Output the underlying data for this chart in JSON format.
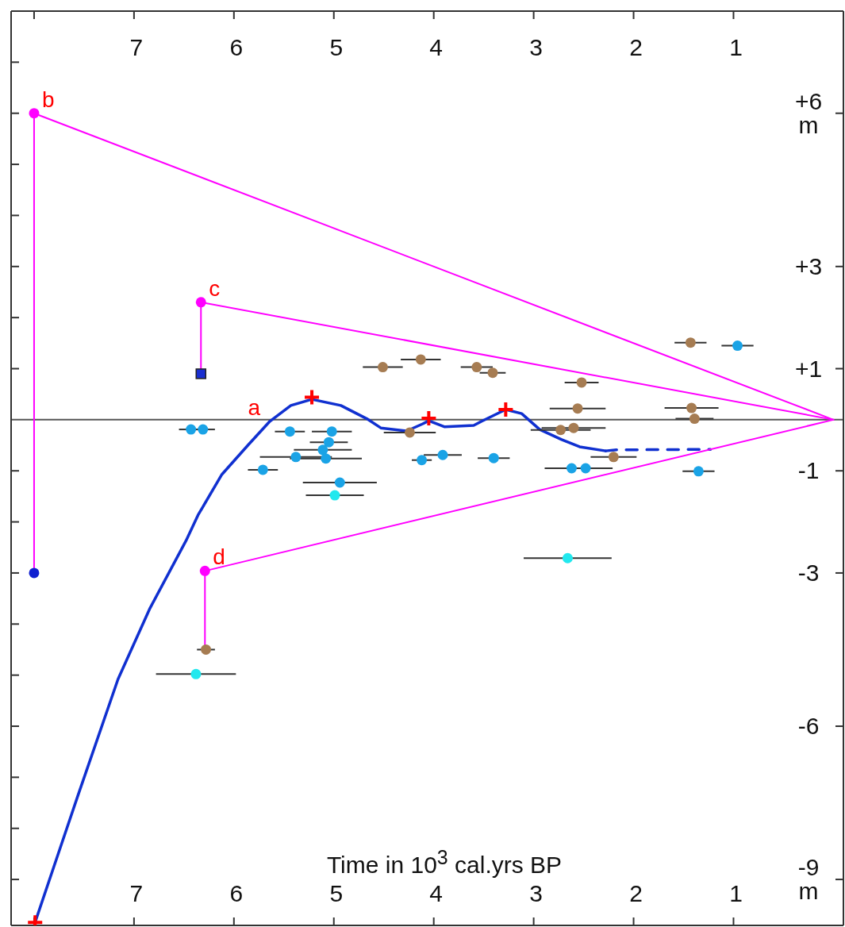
{
  "chart_data": {
    "type": "scatter",
    "xlabel": "Time in 10$^{3}$ cal.yrs BP",
    "xlim": [
      8.23,
      -0.1
    ],
    "xticks": [
      {
        "value": 8,
        "label": null
      },
      7,
      6,
      5,
      4,
      3,
      2,
      1
    ],
    "x2lim": [
      8.23,
      -0.1
    ],
    "x2ticks": [
      {
        "value": 8,
        "label": null
      },
      7,
      6,
      5,
      4,
      3,
      2,
      1
    ],
    "ylim": [
      -9.9,
      8
    ],
    "yticks": [
      {
        "value": -9,
        "label": "-9 m"
      },
      {
        "value": -8,
        "label": null
      },
      {
        "value": -7,
        "label": null
      },
      {
        "value": -6,
        "label": "-6"
      },
      {
        "value": -5,
        "label": null
      },
      {
        "value": -4,
        "label": null
      },
      {
        "value": -3,
        "label": "-3"
      },
      {
        "value": -2,
        "label": null
      },
      {
        "value": -1,
        "label": "-1"
      },
      {
        "value": 1,
        "label": "+1"
      },
      {
        "value": 2,
        "label": null
      },
      {
        "value": 3,
        "label": "+3"
      },
      {
        "value": 4,
        "label": null
      },
      {
        "value": 5,
        "label": null
      },
      {
        "value": 6,
        "label": "+6 m"
      },
      {
        "value": 7,
        "label": null
      }
    ],
    "grid": false,
    "ref_lines": [
      {
        "axis": "y",
        "value": 0,
        "label": null,
        "color": "#555555"
      }
    ],
    "annotations": [
      {
        "text": "a",
        "x": 5.64,
        "y": -0.03
      },
      {
        "text": "b",
        "x": 8,
        "y": 6
      },
      {
        "text": "c",
        "x": 6.33,
        "y": 2.3
      },
      {
        "text": "d",
        "x": 6.29,
        "y": -2.96
      }
    ],
    "series": [
      {
        "type": "line",
        "color": "#1030d0",
        "line_style": "solid",
        "x": [
          7.99,
          7.79,
          7.56,
          7.16,
          6.84,
          6.48,
          6.36,
          6.12,
          5.86,
          5.64,
          5.43,
          5.22,
          4.93,
          4.67,
          4.53,
          4.27,
          4.11,
          4.05,
          3.89,
          3.6,
          3.52,
          3.28,
          3.12,
          2.94,
          2.72,
          2.54,
          2.28
        ],
        "values": [
          -9.84,
          -8.68,
          -7.35,
          -5.08,
          -3.69,
          -2.37,
          -1.87,
          -1.07,
          -0.5,
          -0.03,
          0.28,
          0.4,
          0.28,
          0.02,
          -0.16,
          -0.22,
          -0.08,
          -0.02,
          -0.14,
          -0.11,
          -0.03,
          0.2,
          0.12,
          -0.19,
          -0.39,
          -0.53,
          -0.61
        ]
      },
      {
        "type": "line",
        "color": "#1030d0",
        "line_style": "dashed",
        "x": [
          2.28,
          2.17,
          1.23
        ],
        "values": [
          -0.61,
          -0.59,
          -0.58
        ]
      },
      {
        "type": "line",
        "color": "#ff00ff",
        "line_style": "solid",
        "x": [
          8,
          0
        ],
        "values": [
          6,
          0
        ]
      },
      {
        "type": "line",
        "color": "#ff00ff",
        "line_style": "solid",
        "x": [
          6.33,
          0
        ],
        "values": [
          2.3,
          0
        ]
      },
      {
        "type": "line",
        "color": "#ff00ff",
        "line_style": "solid",
        "x": [
          6.29,
          0
        ],
        "values": [
          -2.96,
          0
        ]
      },
      {
        "type": "line",
        "color": "#ff00ff",
        "line_style": "solid",
        "x": [
          8,
          8
        ],
        "values": [
          -3,
          6
        ]
      },
      {
        "type": "line",
        "color": "#ff00ff",
        "line_style": "solid",
        "x": [
          6.33,
          6.33
        ],
        "values": [
          0.9,
          2.3
        ]
      },
      {
        "type": "line",
        "color": "#ff00ff",
        "line_style": "solid",
        "x": [
          6.29,
          6.29
        ],
        "values": [
          -4.5,
          -2.96
        ]
      },
      {
        "type": "scatter",
        "color": "#ff00ff",
        "marker": "circle",
        "x": [
          8,
          6.33,
          6.29
        ],
        "values": [
          6,
          2.3,
          -2.96
        ]
      },
      {
        "type": "scatter",
        "color": "#1020d0",
        "marker": "circle",
        "x": [
          8
        ],
        "values": [
          -3
        ]
      },
      {
        "type": "scatter",
        "color": "#1a2fd0",
        "marker": "square",
        "x": [
          6.33
        ],
        "values": [
          0.9
        ]
      },
      {
        "type": "scatter",
        "color": "#a67c52",
        "marker": "circle",
        "x": [
          1.43,
          4.51,
          4.13,
          3.57,
          3.41,
          2.52,
          2.56,
          2.6,
          2.73,
          2.2,
          1.42,
          1.39,
          4.24,
          6.28
        ],
        "values": [
          1.51,
          1.03,
          1.18,
          1.03,
          0.92,
          0.73,
          0.22,
          -0.16,
          -0.2,
          -0.73,
          0.23,
          0.02,
          -0.25,
          -4.5
        ],
        "xerrors": [
          0.16,
          0.2,
          0.2,
          0.16,
          0.13,
          0.17,
          0.28,
          0.32,
          0.3,
          0.23,
          0.27,
          0.19,
          0.26,
          0.09
        ]
      },
      {
        "type": "scatter",
        "color": "#1aa3e6",
        "marker": "circle",
        "x": [
          0.96,
          6.43,
          6.31,
          5.44,
          5.02,
          5.05,
          5.11,
          5.38,
          5.08,
          5.71,
          4.94,
          4.12,
          3.91,
          3.4,
          2.62,
          2.48,
          1.35
        ],
        "values": [
          1.45,
          -0.19,
          -0.19,
          -0.23,
          -0.23,
          -0.44,
          -0.59,
          -0.73,
          -0.76,
          -0.98,
          -1.23,
          -0.79,
          -0.69,
          -0.75,
          -0.95,
          -0.95,
          -1.01
        ],
        "xerrors": [
          0.16,
          0.12,
          0.12,
          0.15,
          0.2,
          0.19,
          0.29,
          0.36,
          0.36,
          0.15,
          0.37,
          0.1,
          0.19,
          0.16,
          0.27,
          0.27,
          0.16
        ]
      },
      {
        "type": "scatter",
        "color": "#22e8ee",
        "marker": "circle",
        "x": [
          4.99,
          2.66,
          6.38
        ],
        "values": [
          -1.48,
          -2.71,
          -4.98
        ],
        "xerrors": [
          0.29,
          0.44,
          0.4
        ]
      },
      {
        "type": "scatter",
        "color": "#ff0000",
        "marker": "cross",
        "x": [
          7.99,
          5.22,
          4.05,
          3.28
        ],
        "values": [
          -9.84,
          0.44,
          0.03,
          0.2
        ]
      }
    ]
  }
}
